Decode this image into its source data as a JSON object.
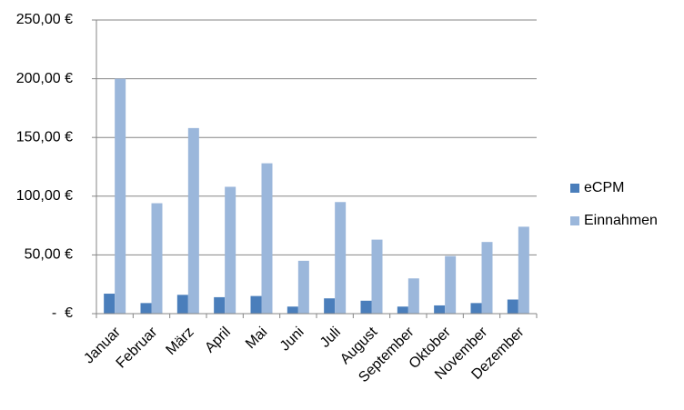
{
  "chart_data": {
    "type": "bar",
    "categories": [
      "Januar",
      "Februar",
      "März",
      "April",
      "Mai",
      "Juni",
      "Juli",
      "August",
      "September",
      "Oktober",
      "November",
      "Dezember"
    ],
    "series": [
      {
        "name": "eCPM",
        "color": "#4a7ebb",
        "values": [
          17,
          9,
          16,
          14,
          15,
          6,
          13,
          11,
          6,
          7,
          9,
          12
        ]
      },
      {
        "name": "Einnahmen",
        "color": "#9bb7db",
        "values": [
          200,
          94,
          158,
          108,
          128,
          45,
          95,
          63,
          30,
          49,
          61,
          74
        ]
      }
    ],
    "ylim": [
      0,
      250
    ],
    "yticks": [
      {
        "value": 0,
        "label": "-  €"
      },
      {
        "value": 50,
        "label": "50,00 €"
      },
      {
        "value": 100,
        "label": "100,00 €"
      },
      {
        "value": 150,
        "label": "150,00 €"
      },
      {
        "value": 200,
        "label": "200,00 €"
      },
      {
        "value": 250,
        "label": "250,00 €"
      }
    ],
    "grid": true,
    "legend": "right"
  }
}
